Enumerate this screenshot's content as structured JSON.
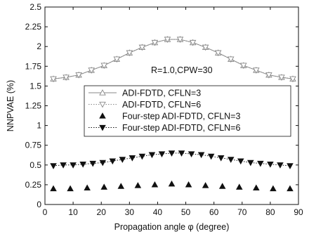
{
  "chart_data": {
    "type": "line",
    "title": "",
    "xlabel": "Propagation angle φ (degree)",
    "ylabel": "NNPVAE (%)",
    "xlim": [
      0,
      90
    ],
    "ylim": [
      0,
      2.5
    ],
    "xticks": [
      "0",
      "10",
      "20",
      "30",
      "40",
      "50",
      "60",
      "70",
      "80",
      "90"
    ],
    "yticks": [
      "0",
      "0.25",
      "0.5",
      "0.75",
      "1",
      "1.25",
      "1.5",
      "1.75",
      "2",
      "2.25",
      "2.5"
    ],
    "grid": false,
    "legend_position": "center",
    "annotation": "R=1.0,CPW=30",
    "series": [
      {
        "name": "ADI-FDTD, CFLN=3",
        "marker": "triangle-up-open",
        "line": "solid",
        "color": "#888888",
        "x": [
          3,
          7.5,
          12,
          16.5,
          21,
          25.5,
          30,
          34.5,
          39,
          43.5,
          48,
          52.5,
          57,
          61.5,
          66,
          70.5,
          75,
          79.5,
          84,
          88
        ],
        "y": [
          1.59,
          1.61,
          1.64,
          1.7,
          1.76,
          1.84,
          1.92,
          1.99,
          2.05,
          2.09,
          2.09,
          2.05,
          1.99,
          1.92,
          1.84,
          1.76,
          1.7,
          1.64,
          1.61,
          1.59
        ]
      },
      {
        "name": "ADI-FDTD, CFLN=6",
        "marker": "triangle-down-open",
        "line": "dotted",
        "color": "#888888",
        "x": [
          3,
          7.5,
          12,
          16.5,
          21,
          25.5,
          30,
          34.5,
          39,
          43.5,
          48,
          52.5,
          57,
          61.5,
          66,
          70.5,
          75,
          79.5,
          84,
          88
        ],
        "y": [
          1.59,
          1.61,
          1.64,
          1.7,
          1.76,
          1.84,
          1.92,
          1.99,
          2.05,
          2.09,
          2.09,
          2.05,
          1.99,
          1.92,
          1.84,
          1.76,
          1.7,
          1.64,
          1.61,
          1.59
        ]
      },
      {
        "name": "Four-step ADI-FDTD, CFLN=3",
        "marker": "triangle-up-filled",
        "line": "none",
        "color": "#111111",
        "x": [
          3,
          9,
          15,
          21,
          27,
          33,
          39,
          45,
          51,
          57,
          63,
          69,
          75,
          81,
          87
        ],
        "y": [
          0.2,
          0.2,
          0.21,
          0.22,
          0.23,
          0.24,
          0.25,
          0.26,
          0.25,
          0.24,
          0.23,
          0.22,
          0.21,
          0.2,
          0.2
        ]
      },
      {
        "name": "Four-step ADI-FDTD, CFLN=6",
        "marker": "triangle-down-filled",
        "line": "dotted",
        "color": "#111111",
        "x": [
          3,
          6.5,
          10,
          13.5,
          17,
          20.5,
          24,
          27.5,
          31,
          34.5,
          38,
          41.5,
          45,
          48.5,
          52,
          55.5,
          59,
          62.5,
          66,
          69.5,
          73,
          76.5,
          80,
          83.5,
          87
        ],
        "y": [
          0.49,
          0.5,
          0.5,
          0.51,
          0.52,
          0.53,
          0.55,
          0.57,
          0.59,
          0.61,
          0.63,
          0.64,
          0.65,
          0.65,
          0.64,
          0.63,
          0.61,
          0.59,
          0.57,
          0.55,
          0.53,
          0.52,
          0.51,
          0.5,
          0.49
        ]
      }
    ]
  }
}
